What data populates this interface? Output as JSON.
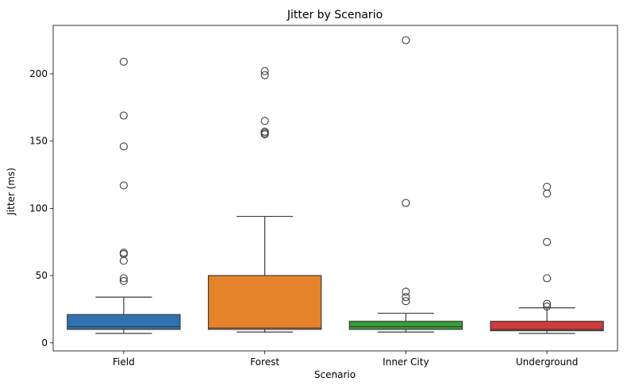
{
  "chart_data": {
    "type": "box",
    "title": "Jitter by Scenario",
    "xlabel": "Scenario",
    "ylabel": "Jitter (ms)",
    "ylim": [
      -6,
      236
    ],
    "yticks": [
      0,
      50,
      100,
      150,
      200
    ],
    "categories": [
      "Field",
      "Forest",
      "Inner City",
      "Underground"
    ],
    "boxes": [
      {
        "name": "Field",
        "color": "#2e72b0",
        "whisker_low": 7,
        "q1": 10,
        "median": 12,
        "q3": 21,
        "whisker_high": 34,
        "outliers": [
          46,
          48,
          61,
          66,
          67,
          117,
          146,
          169,
          209
        ]
      },
      {
        "name": "Forest",
        "color": "#e5832a",
        "whisker_low": 8,
        "q1": 10,
        "median": 11,
        "q3": 50,
        "whisker_high": 94,
        "outliers": [
          155,
          156,
          157,
          165,
          199,
          202
        ]
      },
      {
        "name": "Inner City",
        "color": "#35a035",
        "whisker_low": 8,
        "q1": 10,
        "median": 12,
        "q3": 16,
        "whisker_high": 22,
        "outliers": [
          31,
          34,
          38,
          104,
          225
        ]
      },
      {
        "name": "Underground",
        "color": "#d13a3a",
        "whisker_low": 7,
        "q1": 9,
        "median": 10,
        "q3": 16,
        "whisker_high": 26,
        "outliers": [
          27,
          29,
          48,
          75,
          111,
          116
        ]
      }
    ],
    "grid": false,
    "legend": "none"
  }
}
